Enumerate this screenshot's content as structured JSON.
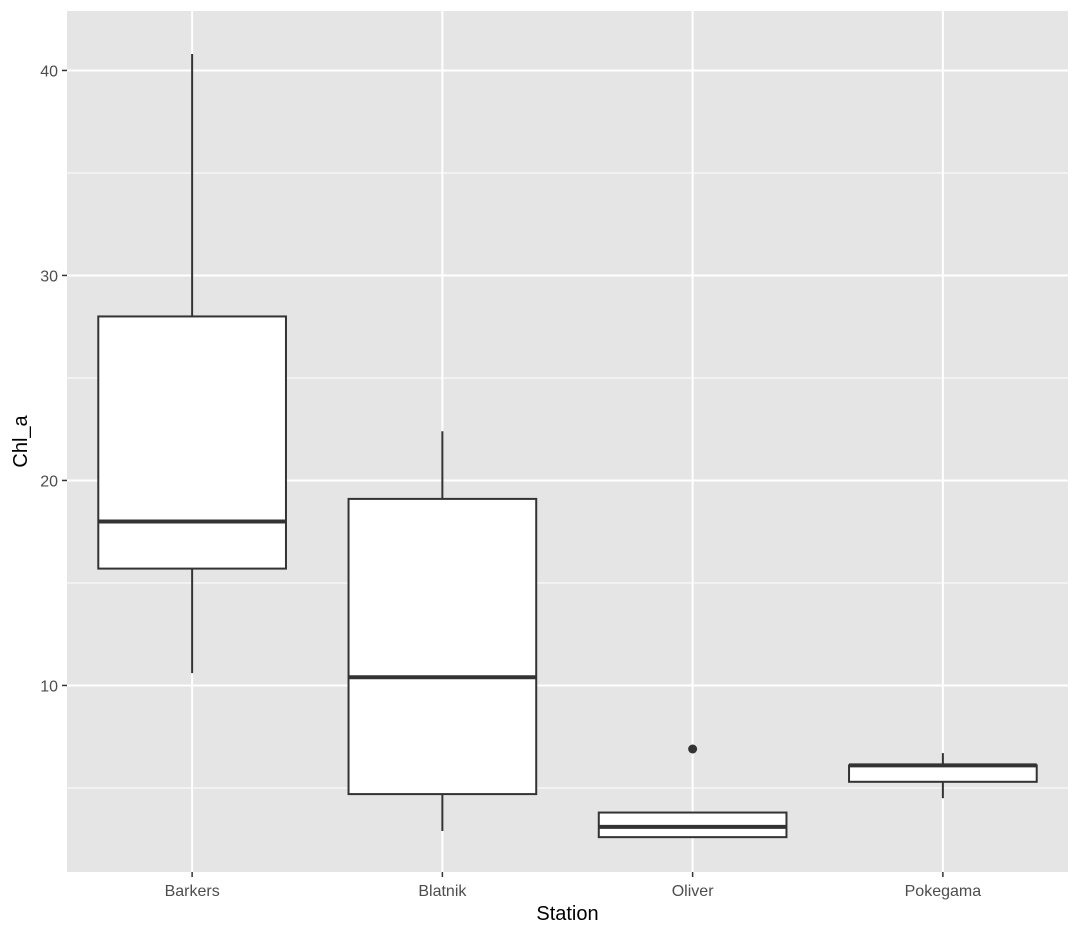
{
  "chart_data": {
    "type": "boxplot",
    "xlabel": "Station",
    "ylabel": "Chl_a",
    "categories": [
      "Barkers",
      "Blatnik",
      "Oliver",
      "Pokegama"
    ],
    "ylim": [
      0.9,
      42.9
    ],
    "yticks": [
      10,
      20,
      30,
      40
    ],
    "grid": true,
    "legend": "none",
    "colors": {
      "panel": "#e5e5e5",
      "gridline": "#ffffff",
      "box_fill": "#ffffff",
      "box_stroke": "#333333"
    },
    "boxes": [
      {
        "station": "Barkers",
        "lower_whisker": 10.6,
        "q1": 15.7,
        "median": 18.0,
        "q3": 28.0,
        "upper_whisker": 40.8,
        "outliers": []
      },
      {
        "station": "Blatnik",
        "lower_whisker": 2.9,
        "q1": 4.7,
        "median": 10.4,
        "q3": 19.1,
        "upper_whisker": 22.4,
        "outliers": []
      },
      {
        "station": "Oliver",
        "lower_whisker": 2.6,
        "q1": 2.6,
        "median": 3.1,
        "q3": 3.8,
        "upper_whisker": 3.8,
        "outliers": [
          6.9
        ]
      },
      {
        "station": "Pokegama",
        "lower_whisker": 4.5,
        "q1": 5.3,
        "median": 6.1,
        "q3": 6.1,
        "upper_whisker": 6.7,
        "outliers": []
      }
    ]
  }
}
